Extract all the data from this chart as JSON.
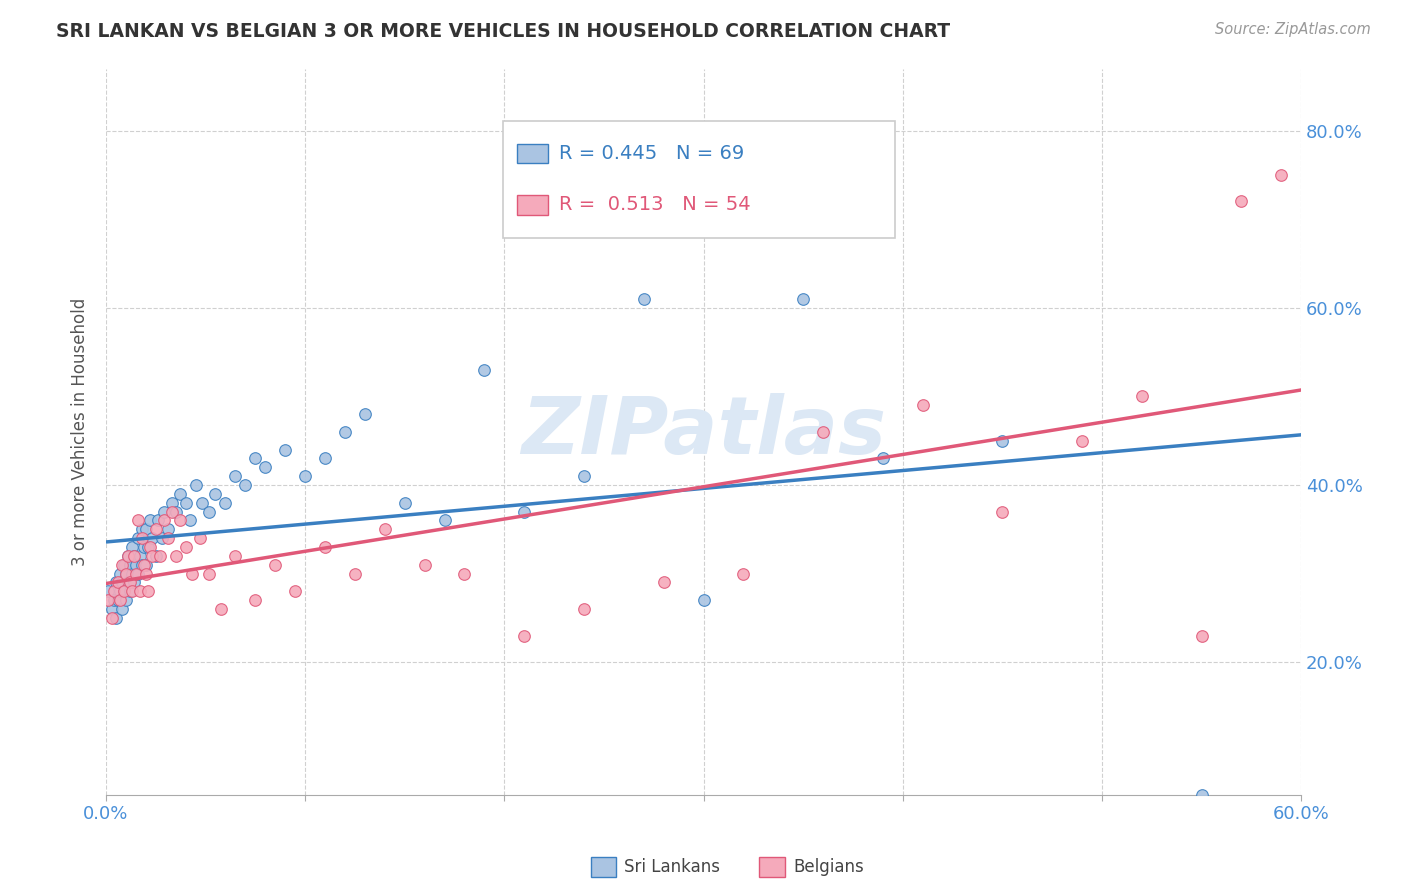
{
  "title": "SRI LANKAN VS BELGIAN 3 OR MORE VEHICLES IN HOUSEHOLD CORRELATION CHART",
  "source_text": "Source: ZipAtlas.com",
  "ylabel": "3 or more Vehicles in Household",
  "xlim": [
    0.0,
    0.6
  ],
  "ylim": [
    0.05,
    0.87
  ],
  "x_ticks": [
    0.0,
    0.1,
    0.2,
    0.3,
    0.4,
    0.5,
    0.6
  ],
  "x_tick_labels_show": [
    "0.0%",
    "",
    "",
    "",
    "",
    "",
    "60.0%"
  ],
  "y_ticks": [
    0.2,
    0.4,
    0.6,
    0.8
  ],
  "y_tick_labels": [
    "20.0%",
    "40.0%",
    "60.0%",
    "80.0%"
  ],
  "sri_lankans_R": "0.445",
  "sri_lankans_N": "69",
  "belgians_R": "0.513",
  "belgians_N": "54",
  "sri_lankans_color": "#aac4e2",
  "belgians_color": "#f5aabb",
  "sri_lankans_line_color": "#3a7fc1",
  "belgians_line_color": "#e05878",
  "background_color": "#ffffff",
  "grid_color": "#d0d0d0",
  "watermark_color": "#dce8f5",
  "axis_label_color": "#4a90d9",
  "title_color": "#333333",
  "sri_lankans_x": [
    0.001,
    0.003,
    0.004,
    0.005,
    0.005,
    0.006,
    0.007,
    0.007,
    0.008,
    0.008,
    0.009,
    0.009,
    0.01,
    0.01,
    0.011,
    0.011,
    0.012,
    0.012,
    0.013,
    0.013,
    0.014,
    0.014,
    0.015,
    0.016,
    0.016,
    0.017,
    0.018,
    0.018,
    0.019,
    0.02,
    0.02,
    0.021,
    0.022,
    0.023,
    0.025,
    0.026,
    0.028,
    0.029,
    0.031,
    0.033,
    0.035,
    0.037,
    0.04,
    0.042,
    0.045,
    0.048,
    0.052,
    0.055,
    0.06,
    0.065,
    0.07,
    0.075,
    0.08,
    0.09,
    0.1,
    0.11,
    0.12,
    0.13,
    0.15,
    0.17,
    0.19,
    0.21,
    0.24,
    0.27,
    0.3,
    0.35,
    0.39,
    0.45,
    0.55
  ],
  "sri_lankans_y": [
    0.28,
    0.26,
    0.27,
    0.25,
    0.29,
    0.27,
    0.28,
    0.3,
    0.26,
    0.29,
    0.28,
    0.31,
    0.27,
    0.3,
    0.29,
    0.32,
    0.28,
    0.31,
    0.3,
    0.33,
    0.29,
    0.32,
    0.31,
    0.3,
    0.34,
    0.32,
    0.31,
    0.35,
    0.33,
    0.31,
    0.35,
    0.33,
    0.36,
    0.34,
    0.32,
    0.36,
    0.34,
    0.37,
    0.35,
    0.38,
    0.37,
    0.39,
    0.38,
    0.36,
    0.4,
    0.38,
    0.37,
    0.39,
    0.38,
    0.41,
    0.4,
    0.43,
    0.42,
    0.44,
    0.41,
    0.43,
    0.46,
    0.48,
    0.38,
    0.36,
    0.53,
    0.37,
    0.41,
    0.61,
    0.27,
    0.61,
    0.43,
    0.45,
    0.05
  ],
  "belgians_x": [
    0.001,
    0.003,
    0.004,
    0.006,
    0.007,
    0.008,
    0.009,
    0.01,
    0.011,
    0.012,
    0.013,
    0.014,
    0.015,
    0.016,
    0.017,
    0.018,
    0.019,
    0.02,
    0.021,
    0.022,
    0.023,
    0.025,
    0.027,
    0.029,
    0.031,
    0.033,
    0.035,
    0.037,
    0.04,
    0.043,
    0.047,
    0.052,
    0.058,
    0.065,
    0.075,
    0.085,
    0.095,
    0.11,
    0.125,
    0.14,
    0.16,
    0.18,
    0.21,
    0.24,
    0.28,
    0.32,
    0.36,
    0.41,
    0.45,
    0.49,
    0.52,
    0.55,
    0.57,
    0.59
  ],
  "belgians_y": [
    0.27,
    0.25,
    0.28,
    0.29,
    0.27,
    0.31,
    0.28,
    0.3,
    0.32,
    0.29,
    0.28,
    0.32,
    0.3,
    0.36,
    0.28,
    0.34,
    0.31,
    0.3,
    0.28,
    0.33,
    0.32,
    0.35,
    0.32,
    0.36,
    0.34,
    0.37,
    0.32,
    0.36,
    0.33,
    0.3,
    0.34,
    0.3,
    0.26,
    0.32,
    0.27,
    0.31,
    0.28,
    0.33,
    0.3,
    0.35,
    0.31,
    0.3,
    0.23,
    0.26,
    0.29,
    0.3,
    0.46,
    0.49,
    0.37,
    0.45,
    0.5,
    0.23,
    0.72,
    0.75
  ]
}
